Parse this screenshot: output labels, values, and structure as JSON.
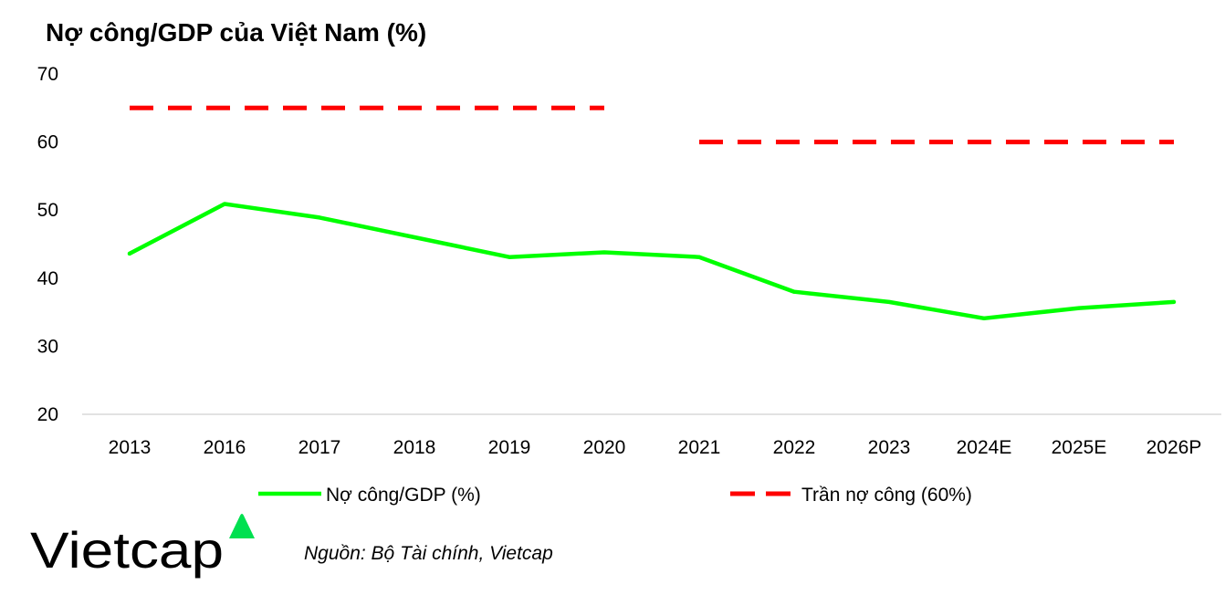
{
  "chart_data": {
    "type": "line",
    "title": "Nợ công/GDP của Việt Nam (%)",
    "categories": [
      "2013",
      "2016",
      "2017",
      "2018",
      "2019",
      "2020",
      "2021",
      "2022",
      "2023",
      "2024E",
      "2025E",
      "2026P"
    ],
    "ylim": [
      20,
      70
    ],
    "yticks": [
      20,
      30,
      40,
      50,
      60,
      70
    ],
    "grid": false,
    "legend_position": "bottom",
    "series": [
      {
        "name": "Nợ công/GDP (%)",
        "values": [
          43.6,
          50.9,
          48.9,
          46.0,
          43.1,
          43.8,
          43.1,
          38.0,
          36.5,
          34.1,
          35.6,
          36.5
        ],
        "color": "#00FF00",
        "style": "solid"
      },
      {
        "name": "Trần nợ công (60%)",
        "values": [
          65,
          65,
          65,
          65,
          65,
          65,
          60,
          60,
          60,
          60,
          60,
          60
        ],
        "color": "#FF0000",
        "style": "dashed"
      }
    ]
  },
  "source": "Nguồn: Bộ Tài chính, Vietcap",
  "logo": {
    "text": "Vietcap",
    "accent_color": "#00E050"
  }
}
